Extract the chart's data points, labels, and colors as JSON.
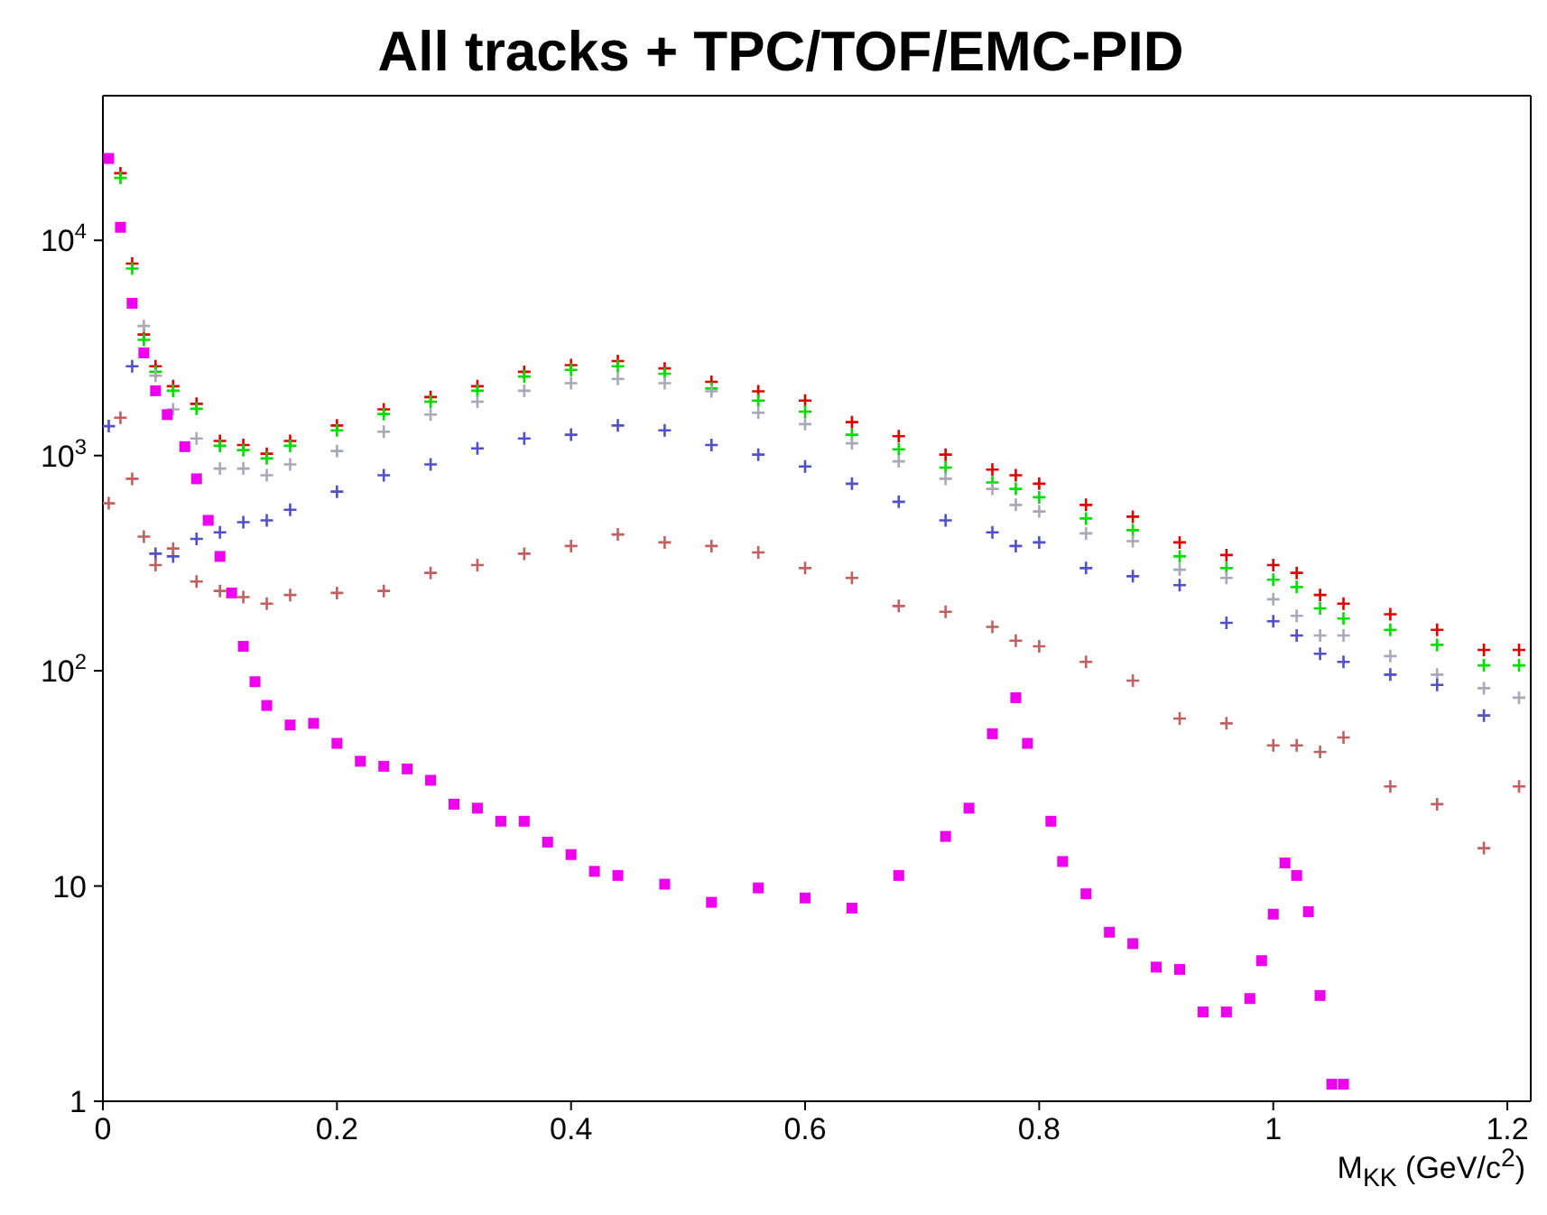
{
  "chart_data": {
    "type": "scatter",
    "title": "All tracks + TPC/TOF/EMC-PID",
    "xlabel": "M$_{KK}$ (GeV/c$^{2}$)",
    "x": [
      0.005,
      0.015,
      0.025,
      0.035,
      0.045,
      0.06,
      0.08,
      0.1,
      0.12,
      0.14,
      0.16,
      0.2,
      0.24,
      0.28,
      0.32,
      0.36,
      0.4,
      0.44,
      0.48,
      0.52,
      0.56,
      0.6,
      0.64,
      0.68,
      0.72,
      0.76,
      0.78,
      0.8,
      0.84,
      0.88,
      0.92,
      0.96,
      1.0,
      1.02,
      1.04,
      1.06,
      1.1,
      1.14,
      1.18,
      1.21
    ],
    "series": [
      {
        "color": "#e00000",
        "values": [
          null,
          20500,
          7800,
          3650,
          2600,
          2100,
          1740,
          1170,
          1120,
          1020,
          1170,
          1380,
          1640,
          1870,
          2100,
          2450,
          2630,
          2750,
          2540,
          2200,
          1990,
          1800,
          1430,
          1230,
          1010,
          860,
          810,
          740,
          590,
          520,
          395,
          345,
          310,
          285,
          225,
          205,
          183,
          155,
          125,
          125
        ]
      },
      {
        "color": "#00e000",
        "values": [
          null,
          19500,
          7400,
          3450,
          2450,
          2000,
          1650,
          1110,
          1060,
          970,
          1110,
          1310,
          1560,
          1780,
          2000,
          2330,
          2500,
          2600,
          2400,
          2050,
          1800,
          1600,
          1250,
          1070,
          880,
          750,
          700,
          640,
          510,
          450,
          340,
          300,
          265,
          245,
          195,
          175,
          155,
          132,
          106,
          106
        ]
      },
      {
        "color": "#a8a8b8",
        "values": [
          null,
          null,
          null,
          4000,
          2350,
          1640,
          1200,
          870,
          870,
          810,
          910,
          1050,
          1290,
          1550,
          1780,
          2000,
          2170,
          2270,
          2170,
          1990,
          1580,
          1400,
          1140,
          940,
          780,
          700,
          590,
          550,
          435,
          400,
          295,
          270,
          215,
          180,
          146,
          146,
          117,
          96,
          83,
          75
        ]
      },
      {
        "color": "#5050c8",
        "values": [
          1370,
          null,
          2600,
          null,
          350,
          340,
          410,
          440,
          490,
          500,
          560,
          680,
          810,
          910,
          1080,
          1200,
          1250,
          1380,
          1310,
          1120,
          1010,
          890,
          740,
          610,
          500,
          440,
          380,
          395,
          300,
          275,
          250,
          167,
          170,
          146,
          120,
          110,
          96,
          86,
          62,
          null
        ]
      },
      {
        "color": "#c06060",
        "values": [
          600,
          1500,
          780,
          420,
          310,
          370,
          260,
          235,
          220,
          205,
          225,
          230,
          235,
          285,
          310,
          350,
          380,
          430,
          395,
          380,
          355,
          300,
          270,
          200,
          188,
          160,
          138,
          130,
          110,
          90,
          60,
          57,
          45,
          45,
          42,
          49,
          29,
          24,
          15,
          29
        ]
      },
      {
        "color": "#ee00ee",
        "marker": "square",
        "x": [
          0.005,
          0.015,
          0.025,
          0.035,
          0.045,
          0.055,
          0.07,
          0.08,
          0.09,
          0.1,
          0.11,
          0.12,
          0.13,
          0.14,
          0.16,
          0.18,
          0.2,
          0.22,
          0.24,
          0.26,
          0.28,
          0.3,
          0.32,
          0.34,
          0.36,
          0.38,
          0.4,
          0.42,
          0.44,
          0.48,
          0.52,
          0.56,
          0.6,
          0.64,
          0.68,
          0.72,
          0.74,
          0.76,
          0.78,
          0.79,
          0.81,
          0.82,
          0.84,
          0.86,
          0.88,
          0.9,
          0.92,
          0.94,
          0.96,
          0.98,
          0.99,
          1.0,
          1.01,
          1.02,
          1.03,
          1.04,
          1.05,
          1.06
        ],
        "values": [
          24000,
          11500,
          5100,
          3000,
          2000,
          1550,
          1100,
          780,
          500,
          340,
          230,
          130,
          89,
          69,
          56,
          57,
          46,
          38,
          36,
          35,
          31,
          24,
          23,
          20,
          20,
          16,
          14,
          11.7,
          11.2,
          10.2,
          8.4,
          9.8,
          8.8,
          7.9,
          11.2,
          17,
          23,
          51,
          75,
          46,
          20,
          13,
          9.2,
          6.1,
          5.4,
          4.2,
          4.1,
          2.6,
          2.6,
          3.0,
          4.5,
          7.4,
          12.8,
          11.2,
          7.6,
          3.1,
          1.2,
          1.2
        ]
      }
    ],
    "marker": "cross",
    "log": "y",
    "xlim": [
      0,
      1.22
    ],
    "ylim": [
      1,
      47000
    ],
    "xticks": [
      0,
      0.2,
      0.4,
      0.6,
      0.8,
      1,
      1.2
    ],
    "yticks": [
      1,
      10,
      {
        "value": 100,
        "label": "10$^{2}$"
      },
      {
        "value": 1000,
        "label": "10$^{3}$"
      },
      {
        "value": 10000,
        "label": "10$^{4}$"
      }
    ],
    "tick_labels": "xy"
  }
}
